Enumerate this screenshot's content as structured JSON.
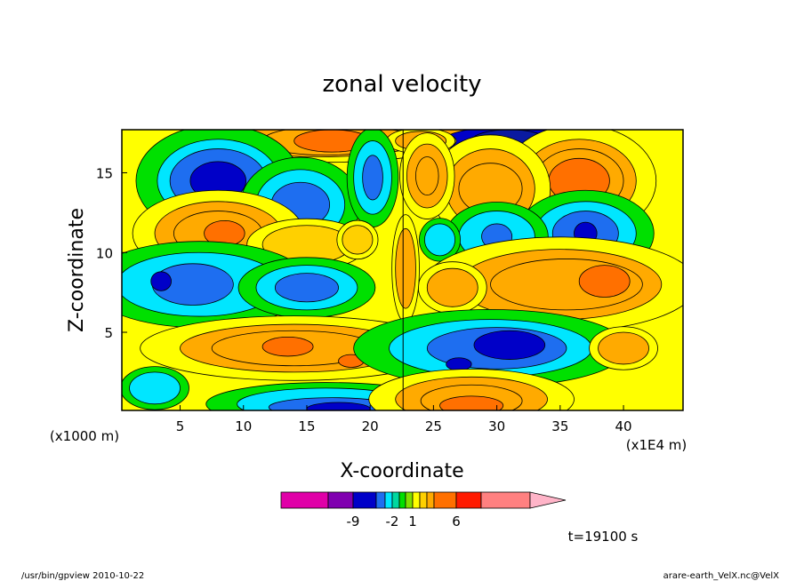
{
  "chart_data": {
    "type": "heatmap",
    "title": "zonal velocity",
    "xlabel": "X-coordinate",
    "ylabel": "Z-coordinate",
    "x_scale_note": "(x1000 m)",
    "x_unit_note": "(x1E4 m)",
    "xlim": [
      0.4,
      44.7
    ],
    "ylim": [
      0.1,
      17.7
    ],
    "xticks": [
      5,
      10,
      15,
      20,
      25,
      30,
      35,
      40
    ],
    "yticks": [
      5,
      10,
      15
    ],
    "colorbar": {
      "colors": [
        "#e000a8",
        "#8000b0",
        "#0000c8",
        "#1e6ef0",
        "#00e6ff",
        "#00d8a0",
        "#00e000",
        "#80e000",
        "#ffff00",
        "#ffd000",
        "#ffaa00",
        "#ff7000",
        "#ff1a00",
        "#ff8080",
        "#ffb4c8"
      ],
      "labels": [
        {
          "text": "-9",
          "after_index": 1
        },
        {
          "text": "-2",
          "after_index": 4
        },
        {
          "text": "1",
          "after_index": 7
        },
        {
          "text": "6",
          "after_index": 11
        }
      ]
    },
    "features": [
      {
        "x": 22.6,
        "z": 17.0,
        "level": -2,
        "rx": 0.8,
        "rz": 0.8
      },
      {
        "x": 29.0,
        "z": 17.0,
        "level": 0,
        "rx": 7.0,
        "rz": 1.0
      },
      {
        "x": 31.0,
        "z": 17.0,
        "level": -5,
        "rx": 5.2,
        "rz": 0.9
      },
      {
        "x": 31.0,
        "z": 17.0,
        "level": -9,
        "rx": 3.0,
        "rz": 0.7
      },
      {
        "x": 16.0,
        "z": 17.0,
        "level": 0,
        "rx": 8.0,
        "rz": 1.0
      },
      {
        "x": 16.5,
        "z": 17.0,
        "level": 3,
        "rx": 5.0,
        "rz": 0.9
      },
      {
        "x": 17.0,
        "z": 17.0,
        "level": 5,
        "rx": 3.0,
        "rz": 0.7
      },
      {
        "x": 24.0,
        "z": 17.0,
        "level": 0,
        "rx": 2.0,
        "rz": 0.6
      },
      {
        "x": 36.5,
        "z": 14.5,
        "level": 0,
        "rx": 4.5,
        "rz": 2.6
      },
      {
        "x": 36.5,
        "z": 14.5,
        "level": 3,
        "rx": 3.5,
        "rz": 2.0
      },
      {
        "x": 36.5,
        "z": 14.5,
        "level": 5,
        "rx": 2.4,
        "rz": 1.4
      },
      {
        "x": 29.5,
        "z": 14.0,
        "level": 0,
        "rx": 3.5,
        "rz": 2.5
      },
      {
        "x": 29.5,
        "z": 14.0,
        "level": 3,
        "rx": 2.5,
        "rz": 1.6
      },
      {
        "x": 24.5,
        "z": 14.8,
        "level": 0,
        "rx": 1.6,
        "rz": 2.0
      },
      {
        "x": 24.5,
        "z": 14.8,
        "level": 3,
        "rx": 0.9,
        "rz": 1.2
      },
      {
        "x": 8.0,
        "z": 14.5,
        "level": -1,
        "rx": 4.8,
        "rz": 2.6
      },
      {
        "x": 8.0,
        "z": 14.5,
        "level": -4,
        "rx": 3.8,
        "rz": 2.0
      },
      {
        "x": 8.0,
        "z": 14.5,
        "level": -7,
        "rx": 2.2,
        "rz": 1.2
      },
      {
        "x": 14.5,
        "z": 13.0,
        "level": -1,
        "rx": 3.5,
        "rz": 2.2
      },
      {
        "x": 14.5,
        "z": 13.0,
        "level": -4,
        "rx": 2.3,
        "rz": 1.4
      },
      {
        "x": 20.2,
        "z": 14.7,
        "level": -1,
        "rx": 1.5,
        "rz": 2.3
      },
      {
        "x": 20.2,
        "z": 14.7,
        "level": -4,
        "rx": 0.8,
        "rz": 1.4
      },
      {
        "x": 8.0,
        "z": 11.2,
        "level": 0,
        "rx": 5.0,
        "rz": 2.0
      },
      {
        "x": 8.0,
        "z": 11.2,
        "level": 3,
        "rx": 3.5,
        "rz": 1.4
      },
      {
        "x": 8.5,
        "z": 11.2,
        "level": 5,
        "rx": 1.6,
        "rz": 0.8
      },
      {
        "x": 37.0,
        "z": 11.2,
        "level": -1,
        "rx": 4.0,
        "rz": 2.0
      },
      {
        "x": 37.0,
        "z": 11.2,
        "level": -4,
        "rx": 2.6,
        "rz": 1.4
      },
      {
        "x": 37.0,
        "z": 11.2,
        "level": -7,
        "rx": 0.9,
        "rz": 0.7
      },
      {
        "x": 30.0,
        "z": 11.0,
        "level": -1,
        "rx": 3.0,
        "rz": 1.6
      },
      {
        "x": 30.0,
        "z": 11.0,
        "level": -4,
        "rx": 1.2,
        "rz": 0.8
      },
      {
        "x": 25.5,
        "z": 10.8,
        "level": -1,
        "rx": 1.2,
        "rz": 1.0
      },
      {
        "x": 15.0,
        "z": 10.5,
        "level": 2,
        "rx": 3.5,
        "rz": 1.2
      },
      {
        "x": 19.0,
        "z": 10.8,
        "level": 2,
        "rx": 1.2,
        "rz": 0.9
      },
      {
        "x": 6.5,
        "z": 8.0,
        "level": -1,
        "rx": 6.5,
        "rz": 2.0
      },
      {
        "x": 6.0,
        "z": 8.0,
        "level": -4,
        "rx": 3.2,
        "rz": 1.3
      },
      {
        "x": 3.5,
        "z": 8.2,
        "level": -7,
        "rx": 0.8,
        "rz": 0.6
      },
      {
        "x": 15.0,
        "z": 7.8,
        "level": -1,
        "rx": 4.0,
        "rz": 1.4
      },
      {
        "x": 15.0,
        "z": 7.8,
        "level": -4,
        "rx": 2.5,
        "rz": 0.9
      },
      {
        "x": 35.0,
        "z": 8.0,
        "level": 0,
        "rx": 8.0,
        "rz": 2.2
      },
      {
        "x": 35.5,
        "z": 8.0,
        "level": 3,
        "rx": 6.0,
        "rz": 1.6
      },
      {
        "x": 38.5,
        "z": 8.2,
        "level": 5,
        "rx": 2.0,
        "rz": 1.0
      },
      {
        "x": 26.5,
        "z": 7.8,
        "level": 0,
        "rx": 2.0,
        "rz": 1.2
      },
      {
        "x": 22.8,
        "z": 9.0,
        "level": 0,
        "rx": 0.8,
        "rz": 2.5
      },
      {
        "x": 14.0,
        "z": 4.0,
        "level": 0,
        "rx": 9.0,
        "rz": 1.5
      },
      {
        "x": 14.0,
        "z": 4.0,
        "level": 3,
        "rx": 6.5,
        "rz": 1.1
      },
      {
        "x": 13.5,
        "z": 4.1,
        "level": 5,
        "rx": 2.0,
        "rz": 0.6
      },
      {
        "x": 18.5,
        "z": 3.2,
        "level": 5,
        "rx": 1.0,
        "rz": 0.4
      },
      {
        "x": 29.5,
        "z": 4.0,
        "level": -1,
        "rx": 8.0,
        "rz": 1.8
      },
      {
        "x": 30.0,
        "z": 4.0,
        "level": -4,
        "rx": 5.5,
        "rz": 1.3
      },
      {
        "x": 31.0,
        "z": 4.2,
        "level": -7,
        "rx": 2.8,
        "rz": 0.9
      },
      {
        "x": 27.0,
        "z": 3.0,
        "level": -7,
        "rx": 1.0,
        "rz": 0.4
      },
      {
        "x": 40.0,
        "z": 4.0,
        "level": 0,
        "rx": 2.0,
        "rz": 1.0
      },
      {
        "x": 16.5,
        "z": 0.5,
        "level": -1,
        "rx": 7.0,
        "rz": 1.0
      },
      {
        "x": 17.0,
        "z": 0.3,
        "level": -4,
        "rx": 5.0,
        "rz": 0.6
      },
      {
        "x": 17.5,
        "z": 0.2,
        "level": -7,
        "rx": 2.5,
        "rz": 0.4
      },
      {
        "x": 28.0,
        "z": 0.8,
        "level": 0,
        "rx": 6.0,
        "rz": 1.4
      },
      {
        "x": 28.0,
        "z": 0.7,
        "level": 3,
        "rx": 4.0,
        "rz": 1.0
      },
      {
        "x": 28.0,
        "z": 0.4,
        "level": 5,
        "rx": 2.5,
        "rz": 0.6
      },
      {
        "x": 3.0,
        "z": 1.5,
        "level": -1,
        "rx": 2.0,
        "rz": 1.0
      }
    ],
    "divider_x": 22.6
  },
  "footer": {
    "time_label": "t=19100 s",
    "left": "/usr/bin/gpview   2010-10-22",
    "right": "arare-earth_VelX.nc@VelX"
  }
}
